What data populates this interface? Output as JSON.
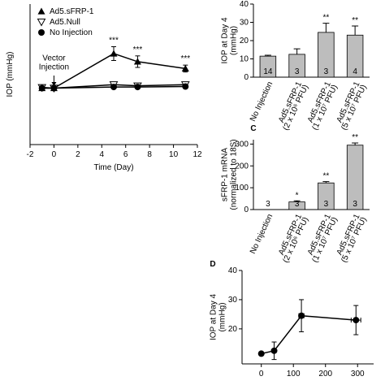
{
  "chart_data": [
    {
      "type": "line",
      "x_label": "Time (Day)",
      "y_label": "IOP (mmHg)",
      "x": [
        -1,
        0,
        5,
        7,
        11
      ],
      "xlim": [
        -2,
        12
      ],
      "xticks": [
        -2,
        0,
        2,
        4,
        6,
        8,
        10,
        12
      ],
      "ylim": [
        -13,
        48
      ],
      "legend": "top-left",
      "series": [
        {
          "name": "Ad5.sFRP-1",
          "color": "#000000",
          "marker": "triangle-up",
          "values": [
            11.5,
            11.5,
            26.5,
            23,
            20
          ],
          "errors": [
            0.8,
            0.5,
            3,
            2.5,
            1.5
          ],
          "significance": [
            null,
            null,
            "***",
            "***",
            "***"
          ]
        },
        {
          "name": "Ad5.Null",
          "color": "#000000",
          "marker": "triangle-down-open",
          "values": [
            11.8,
            11.5,
            13,
            12.5,
            13
          ],
          "errors": [
            0.5,
            0.4,
            0.6,
            0.6,
            0.6
          ]
        },
        {
          "name": "No Injection",
          "color": "#000000",
          "marker": "circle",
          "values": [
            11.5,
            11.5,
            12,
            12,
            12.2
          ],
          "errors": [
            0.5,
            0.4,
            0.5,
            0.5,
            0.5
          ]
        }
      ],
      "annotations": [
        {
          "text": "Vector\nInjection",
          "x": 0
        }
      ]
    },
    {
      "type": "bar",
      "y_label": "IOP at Day 4\n(mmHg)",
      "categories": [
        "No Injection",
        "Ad5.sFRP-1\n(2 x 10⁶ PFU)",
        "Ad5.sFRP-1\n(1 x 10⁷ PFU)",
        "Ad5.sFRP-1\n(5 x 10⁷ PFU)"
      ],
      "values": [
        11.5,
        12.5,
        24.5,
        23
      ],
      "errors": [
        0.5,
        3,
        5,
        5
      ],
      "n_labels": [
        "14",
        "3",
        "3",
        "4"
      ],
      "significance": [
        null,
        null,
        "**",
        "**"
      ],
      "color": "#bdbdbd",
      "ylim": [
        0,
        40
      ],
      "yticks": [
        0,
        10,
        20,
        30,
        40
      ]
    },
    {
      "type": "bar",
      "panel_label": "C",
      "y_label": "sFRP-1 mRNA\n(normalized to 18S)",
      "categories": [
        "No Injection",
        "Ad5.sFRP-1\n(2 x 10⁶ PFU)",
        "Ad5.sFRP-1\n(1 x 10⁷ PFU)",
        "Ad5.sFRP-1\n(5 x 10⁷ PFU)"
      ],
      "values": [
        0,
        35,
        122,
        295
      ],
      "errors": [
        0,
        5,
        6,
        10
      ],
      "n_labels": [
        "3",
        "3",
        "3",
        "3"
      ],
      "significance": [
        null,
        "*",
        "**",
        "**"
      ],
      "color": "#bdbdbd",
      "ylim": [
        0,
        320
      ],
      "yticks": [
        0,
        100,
        200,
        300
      ]
    },
    {
      "type": "line",
      "panel_label": "D",
      "y_label": "IOP at Day 4\n(mmHg)",
      "x": [
        0,
        40,
        125,
        295
      ],
      "x_errors": [
        0,
        0,
        8,
        15
      ],
      "xlim": [
        -60,
        350
      ],
      "xticks": [
        0,
        100,
        200,
        300
      ],
      "ylim": [
        8,
        40
      ],
      "yticks": [
        20,
        30,
        40
      ],
      "series": [
        {
          "name": null,
          "color": "#000000",
          "marker": "circle",
          "values": [
            11.5,
            12.5,
            24.5,
            23
          ],
          "errors": [
            0.5,
            3,
            5.5,
            5
          ]
        }
      ]
    }
  ]
}
